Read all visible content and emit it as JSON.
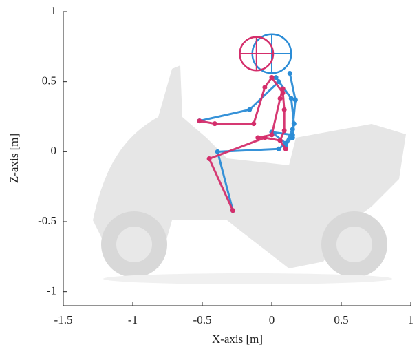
{
  "chart_data": {
    "type": "line",
    "x_label": "X-axis [m]",
    "y_label": "Z-axis [m]",
    "xlim": [
      -1.5,
      1
    ],
    "ylim": [
      -1.1,
      1
    ],
    "xticks": [
      -1.5,
      -1,
      -0.5,
      0,
      0.5,
      1
    ],
    "yticks": [
      -1,
      -0.5,
      0,
      0.5,
      1
    ],
    "series": [
      {
        "color": "#2b8cd6",
        "x": [
          -0.52,
          -0.16,
          0.05,
          null,
          0.03,
          0.14,
          0.16,
          0.15,
          0.05,
          null,
          0.05,
          -0.39,
          -0.28,
          null,
          0.13,
          0.17,
          0.15,
          0.1,
          0.0,
          null,
          0.0,
          0.15,
          0.1
        ],
        "values": [
          0.22,
          0.3,
          0.5,
          null,
          0.53,
          0.38,
          0.2,
          0.1,
          0.02,
          null,
          0.02,
          0.0,
          -0.42,
          null,
          0.56,
          0.37,
          0.16,
          0.06,
          0.14,
          null,
          0.14,
          0.12,
          0.04
        ],
        "head": {
          "x": 0.0,
          "y": 0.7,
          "r": 0.14
        }
      },
      {
        "color": "#d42e6b",
        "x": [
          -0.52,
          -0.41,
          -0.13,
          -0.05,
          0.0,
          null,
          0.0,
          0.08,
          0.09,
          0.09,
          0.06,
          null,
          0.06,
          -0.05,
          -0.45,
          -0.28,
          null,
          0.08,
          0.06,
          0.0,
          -0.1,
          null,
          0.06,
          0.1
        ],
        "values": [
          0.22,
          0.2,
          0.2,
          0.46,
          0.53,
          null,
          0.53,
          0.42,
          0.3,
          0.15,
          0.08,
          null,
          0.08,
          0.1,
          -0.05,
          -0.42,
          null,
          0.45,
          0.38,
          0.12,
          0.1,
          null,
          0.08,
          0.02
        ],
        "head": {
          "x": -0.11,
          "y": 0.7,
          "r": 0.12
        }
      }
    ]
  }
}
